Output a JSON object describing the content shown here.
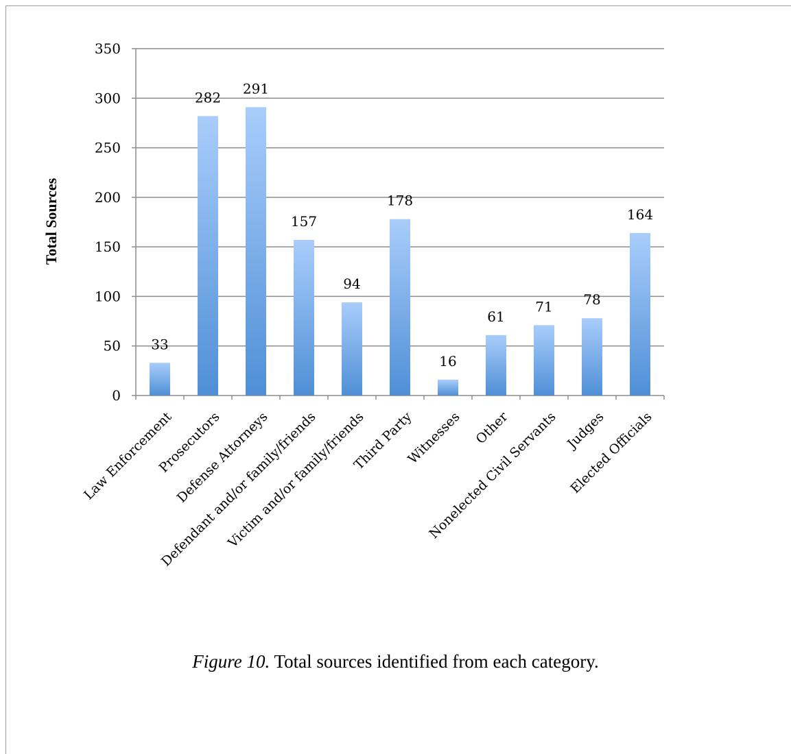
{
  "chart_data": {
    "type": "bar",
    "categories": [
      "Law Enforcement",
      "Prosecutors",
      "Defense Attorneys",
      "Defendant and/or family/friends",
      "Victim and/or family/friends",
      "Third Party",
      "Witnesses",
      "Other",
      "Nonelected Civil Servants",
      "Judges",
      "Elected Officials"
    ],
    "values": [
      33,
      282,
      291,
      157,
      94,
      178,
      16,
      61,
      71,
      78,
      164
    ],
    "xlabel": "",
    "ylabel": "Total Sources",
    "ylim": [
      0,
      350
    ],
    "yticks": [
      0,
      50,
      100,
      150,
      200,
      250,
      300,
      350
    ],
    "grid": true,
    "legend": "none",
    "bar_color_top": "#a9cdfb",
    "bar_color_bottom": "#4f8fd6",
    "gridline_color": "#8c8c8c"
  },
  "caption": {
    "figure_number": "Figure 10.",
    "text": " Total sources identified from each category."
  }
}
